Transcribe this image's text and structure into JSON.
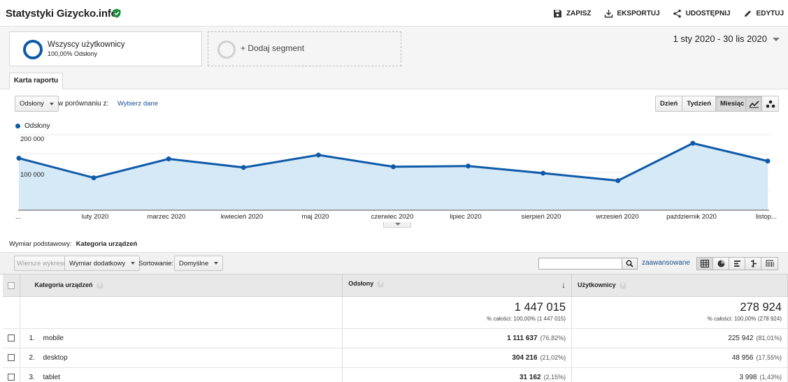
{
  "header": {
    "title": "Statystyki Gizycko.info",
    "actions": {
      "save": "ZAPISZ",
      "export": "EKSPORTUJ",
      "share": "UDOSTĘPNIJ",
      "edit": "EDYTUJ"
    }
  },
  "segments": {
    "active_name": "Wszyscy użytkownicy",
    "active_sub": "100,00% Odsłony",
    "add_label": "+ Dodaj segment"
  },
  "date_range": "1 sty 2020 - 30 lis 2020",
  "report_tab": "Karta raportu",
  "chart_controls": {
    "metric": "Odsłony",
    "compare_label": "w porównaniu z:",
    "compare_link": "Wybierz dane",
    "periods": [
      "Dzień",
      "Tydzień",
      "Miesiąc"
    ],
    "active_period": "Miesiąc"
  },
  "chart_data": {
    "type": "area",
    "series": [
      {
        "name": "Odsłony",
        "values": [
          146000,
          91000,
          144000,
          120000,
          155000,
          122000,
          124000,
          104000,
          83000,
          188000,
          138000
        ]
      }
    ],
    "x_labels": [
      "...",
      "luty 2020",
      "marzec 2020",
      "kwiecień 2020",
      "maj 2020",
      "czerwiec 2020",
      "lipiec 2020",
      "sierpień 2020",
      "wrzesień 2020",
      "październik 2020",
      "listop..."
    ],
    "y_ticks": [
      {
        "value": 100000,
        "label": "100 000"
      },
      {
        "value": 200000,
        "label": "200 000"
      }
    ],
    "ylim": [
      0,
      200000
    ],
    "color": "#0f5aa8",
    "fill": "#d6e9f7"
  },
  "dimension": {
    "label": "Wymiar podstawowy:",
    "value": "Kategoria urządzeń"
  },
  "toolbar": {
    "plot_rows": "Wiersze wykresu",
    "secondary_dim": "Wymiar dodatkowy",
    "sort_label": "Sortowanie:",
    "sort_value": "Domyślne",
    "search_placeholder": "",
    "advanced": "zaawansowane"
  },
  "table": {
    "headers": {
      "dimension": "Kategoria urządzeń",
      "views": "Odsłony",
      "users": "Użytkownicy"
    },
    "totals": {
      "views": "1 447 015",
      "views_sub": "% całości: 100,00% (1 447 015)",
      "users": "278 924",
      "users_sub": "% całości: 100,00% (278 924)"
    },
    "rows": [
      {
        "idx": "1.",
        "name": "mobile",
        "views": "1 111 637",
        "views_pct": "(76,82%)",
        "users": "225 942",
        "users_pct": "(81,01%)"
      },
      {
        "idx": "2.",
        "name": "desktop",
        "views": "304 216",
        "views_pct": "(21,02%)",
        "users": "48 956",
        "users_pct": "(17,55%)"
      },
      {
        "idx": "3.",
        "name": "tablet",
        "views": "31 162",
        "views_pct": "(2,15%)",
        "users": "3 998",
        "users_pct": "(1,43%)"
      }
    ]
  }
}
